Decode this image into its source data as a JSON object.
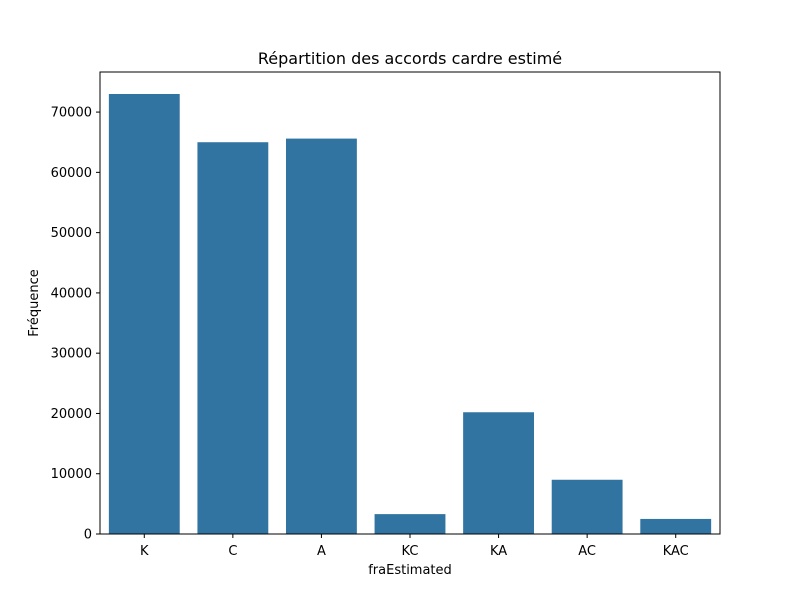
{
  "chart_data": {
    "type": "bar",
    "title": "Répartition des accords cardre estimé",
    "xlabel": "fraEstimated",
    "ylabel": "Fréquence",
    "categories": [
      "K",
      "C",
      "A",
      "KC",
      "KA",
      "AC",
      "KAC"
    ],
    "values": [
      73000,
      65000,
      65600,
      3300,
      20200,
      9000,
      2500
    ],
    "ylim": [
      0,
      76650
    ],
    "yticks": [
      0,
      10000,
      20000,
      30000,
      40000,
      50000,
      60000,
      70000
    ],
    "ytick_labels": [
      "0",
      "10000",
      "20000",
      "30000",
      "40000",
      "50000",
      "60000",
      "70000"
    ],
    "bar_color": "#3274a1",
    "grid": false,
    "legend": "none"
  }
}
